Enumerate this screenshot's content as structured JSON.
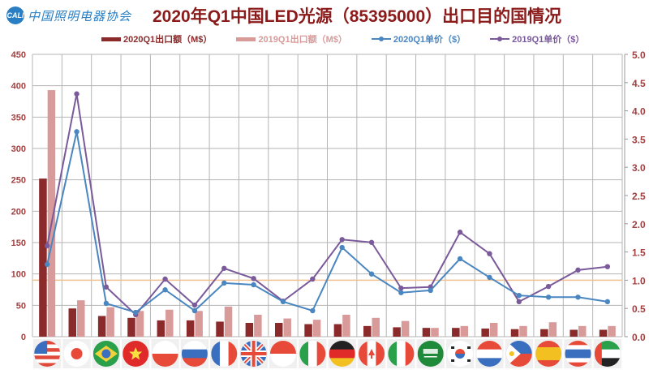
{
  "header": {
    "logo_badge": "CALI",
    "logo_text": "中国照明电器协会",
    "title": "2020年Q1中国LED光源（85395000）出口目的国情况"
  },
  "legend": [
    {
      "label": "2020Q1出口额（M$）",
      "type": "bar",
      "color": "#8b2a2a"
    },
    {
      "label": "2019Q1出口额（M$）",
      "type": "bar",
      "color": "#d99a9a"
    },
    {
      "label": "2020Q1单价（$）",
      "type": "line",
      "color": "#4a86c0"
    },
    {
      "label": "2019Q1单价（$）",
      "type": "line",
      "color": "#7a5a9a"
    }
  ],
  "colors": {
    "bar_2020": "#8b2a2a",
    "bar_2019": "#d99a9a",
    "line_2020": "#4a86c0",
    "line_2019": "#7a5a9a",
    "axis_text": "#a04040",
    "grid": "#b5b5b5",
    "reference_line": "#f0c090",
    "title": "#8b1a1a"
  },
  "chart_data": {
    "type": "bar",
    "title": "2020年Q1中国LED光源（85395000）出口目的国情况",
    "xlabel": "",
    "ylabel": "出口额（M$）",
    "y2label": "单价（$）",
    "ylim": [
      0,
      450
    ],
    "y2lim": [
      0,
      5.0
    ],
    "yticks": [
      0,
      50,
      100,
      150,
      200,
      250,
      300,
      350,
      400,
      450
    ],
    "y2ticks": [
      "0.0",
      "0.5",
      "1.0",
      "1.5",
      "2.0",
      "2.5",
      "3.0",
      "3.5",
      "4.0",
      "4.5",
      "5.0"
    ],
    "grid": true,
    "legend_position": "top",
    "categories": [
      "United States",
      "Japan",
      "Brazil",
      "Vietnam",
      "Poland",
      "Russia",
      "France",
      "United Kingdom",
      "Indonesia",
      "Mexico",
      "Germany",
      "Canada",
      "Italy",
      "Saudi Arabia",
      "South Korea",
      "Netherlands",
      "Philippines",
      "Spain",
      "Thailand",
      "UAE"
    ],
    "category_display": "flag icons",
    "series": [
      {
        "name": "2020Q1出口额（M$）",
        "type": "bar",
        "axis": "left",
        "values": [
          252,
          45,
          33,
          30,
          26,
          26,
          24,
          22,
          22,
          20,
          20,
          17,
          15,
          14,
          14,
          13,
          12,
          12,
          11,
          11
        ]
      },
      {
        "name": "2019Q1出口额（M$）",
        "type": "bar",
        "axis": "left",
        "values": [
          393,
          58,
          47,
          41,
          43,
          41,
          48,
          35,
          29,
          27,
          35,
          30,
          25,
          14,
          17,
          22,
          17,
          23,
          17,
          17
        ]
      },
      {
        "name": "2020Q1单价（$）",
        "type": "line",
        "axis": "right",
        "values": [
          1.28,
          3.63,
          0.59,
          0.43,
          0.83,
          0.46,
          0.95,
          0.92,
          0.62,
          0.46,
          1.58,
          1.11,
          0.78,
          0.82,
          1.38,
          1.05,
          0.73,
          0.7,
          0.7,
          0.62
        ]
      },
      {
        "name": "2019Q1单价（$）",
        "type": "line",
        "axis": "right",
        "values": [
          1.61,
          4.3,
          0.88,
          0.39,
          1.02,
          0.56,
          1.21,
          1.03,
          0.63,
          1.02,
          1.72,
          1.67,
          0.86,
          0.88,
          1.85,
          1.47,
          0.62,
          0.89,
          1.18,
          1.24
        ]
      }
    ],
    "annotations": [
      {
        "type": "horizontal_reference_line",
        "axis": "right",
        "value": 1.0,
        "color": "#f0c090"
      }
    ]
  }
}
